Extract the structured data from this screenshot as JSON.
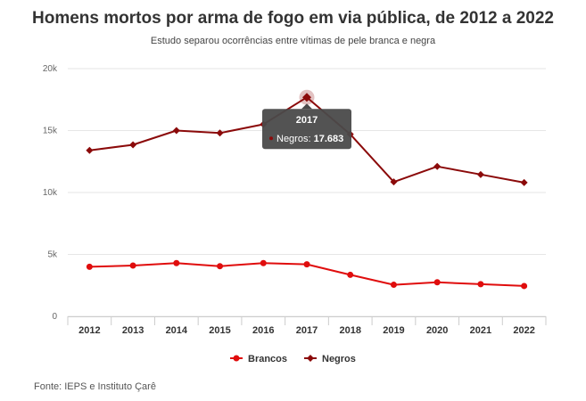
{
  "chart_data": {
    "type": "line",
    "title": "Homens mortos por arma de fogo em via pública, de 2012 a 2022",
    "subtitle": "Estudo separou ocorrências entre vítimas de pele branca e negra",
    "categories": [
      "2012",
      "2013",
      "2014",
      "2015",
      "2016",
      "2017",
      "2018",
      "2019",
      "2020",
      "2021",
      "2022"
    ],
    "series": [
      {
        "name": "Brancos",
        "color": "#e00d0d",
        "marker": "circle",
        "values": [
          4000,
          4100,
          4300,
          4050,
          4300,
          4200,
          3350,
          2550,
          2750,
          2600,
          2450
        ]
      },
      {
        "name": "Negros",
        "color": "#8b0a0a",
        "marker": "diamond",
        "values": [
          13400,
          13850,
          15000,
          14800,
          15500,
          17683,
          14700,
          10850,
          12100,
          11450,
          10800
        ]
      }
    ],
    "y_ticks": [
      "0",
      "5k",
      "10k",
      "15k",
      "20k"
    ],
    "ylim": [
      0,
      20000
    ],
    "grid": true,
    "legend_position": "bottom-center",
    "tooltip": {
      "category": "2017",
      "series": "Negros",
      "value_label": "17.683"
    },
    "source": "Fonte: IEPS e Instituto Çarê"
  }
}
